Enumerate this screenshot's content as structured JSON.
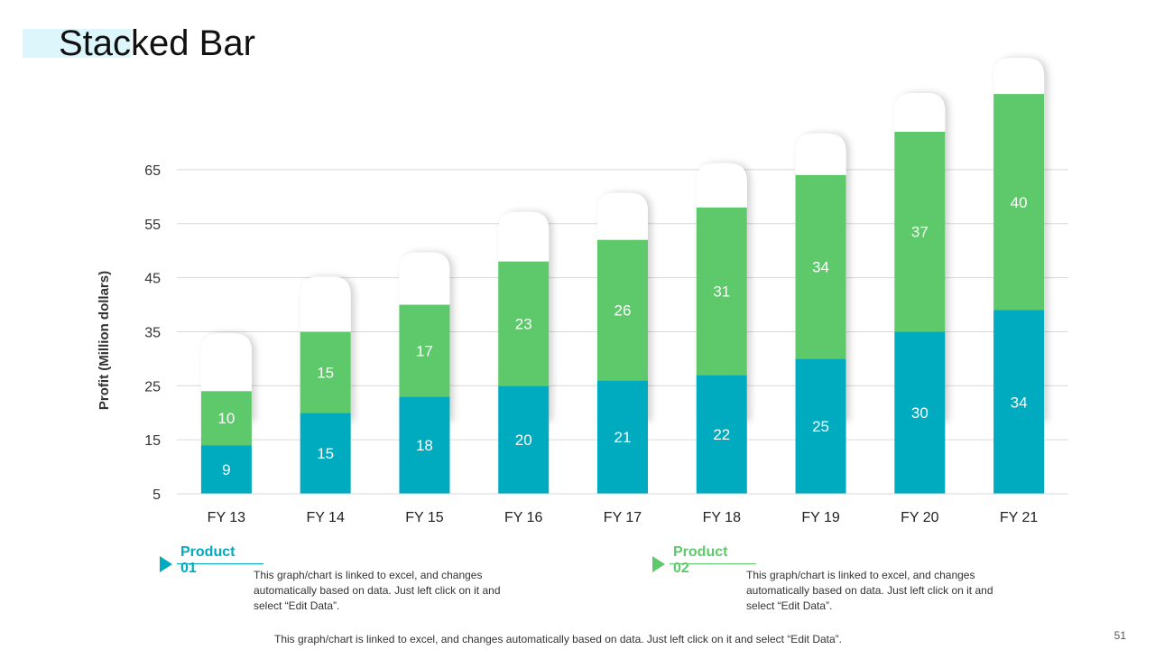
{
  "title": "Stacked Bar",
  "legend": [
    {
      "name": "Product 01",
      "color": "#00aabf",
      "description": "This graph/chart is linked to excel, and changes automatically based on data. Just left click on it and select “Edit Data”."
    },
    {
      "name": "Product 02",
      "color": "#5ec96a",
      "description": "This graph/chart is linked to excel, and changes automatically based on data. Just left click on it and select “Edit Data”."
    }
  ],
  "footer": "This graph/chart is linked to excel, and changes automatically based on data. Just left click on it and select “Edit Data”.",
  "page_number": "51",
  "chart_data": {
    "type": "bar",
    "stacked": true,
    "title": "",
    "xlabel": "",
    "ylabel": "Profit (Million dollars)",
    "categories": [
      "FY 13",
      "FY 14",
      "FY 15",
      "FY 16",
      "FY 17",
      "FY 18",
      "FY 19",
      "FY 20",
      "FY 21"
    ],
    "series": [
      {
        "name": "Product 01",
        "color": "#00aabf",
        "values": [
          9,
          15,
          18,
          20,
          21,
          22,
          25,
          30,
          34
        ]
      },
      {
        "name": "Product 02",
        "color": "#5ec96a",
        "values": [
          10,
          15,
          17,
          23,
          26,
          31,
          34,
          37,
          40
        ]
      }
    ],
    "yticks": [
      5,
      15,
      25,
      35,
      45,
      55,
      65
    ],
    "ylim": [
      5,
      70
    ],
    "grid": true
  }
}
